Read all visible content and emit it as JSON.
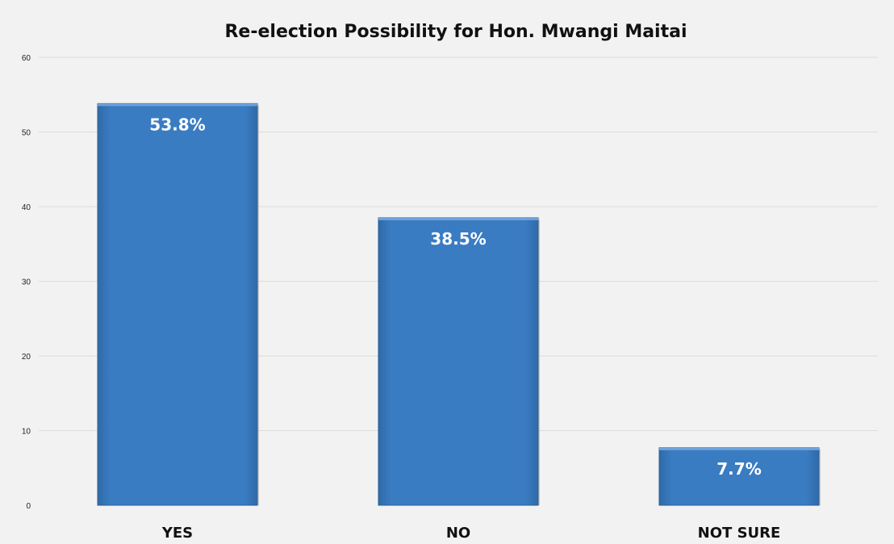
{
  "chart_data": {
    "type": "bar",
    "title": "Re-election Possibility for Hon. Mwangi Maitai",
    "xlabel": "",
    "ylabel": "",
    "categories": [
      "YES",
      "NO",
      "NOT SURE"
    ],
    "values": [
      53.8,
      38.5,
      7.7
    ],
    "data_labels": [
      "53.8%",
      "38.5%",
      "7.7%"
    ],
    "ylim": [
      0,
      60
    ],
    "yticks": [
      "0",
      "10",
      "20",
      "30",
      "40",
      "50",
      "60"
    ],
    "grid": true,
    "legend": "none",
    "bar_color": "#3a7cc2",
    "background_color": "#f2f2f2"
  }
}
